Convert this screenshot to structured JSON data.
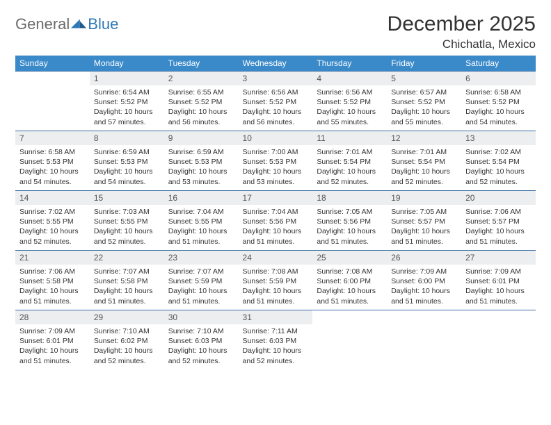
{
  "brand": {
    "part1": "General",
    "part2": "Blue"
  },
  "title": "December 2025",
  "location": "Chichatla, Mexico",
  "colors": {
    "header_bg": "#3a89c9",
    "header_text": "#ffffff",
    "daynum_bg": "#eceeef",
    "cell_border": "#3a6fa5",
    "brand_accent": "#2f78b6",
    "brand_gray": "#6b6b6b",
    "text": "#333333",
    "page_bg": "#ffffff"
  },
  "weekdays": [
    "Sunday",
    "Monday",
    "Tuesday",
    "Wednesday",
    "Thursday",
    "Friday",
    "Saturday"
  ],
  "weeks": [
    [
      {
        "n": "",
        "sr": "",
        "ss": "",
        "dl": ""
      },
      {
        "n": "1",
        "sr": "Sunrise: 6:54 AM",
        "ss": "Sunset: 5:52 PM",
        "dl": "Daylight: 10 hours and 57 minutes."
      },
      {
        "n": "2",
        "sr": "Sunrise: 6:55 AM",
        "ss": "Sunset: 5:52 PM",
        "dl": "Daylight: 10 hours and 56 minutes."
      },
      {
        "n": "3",
        "sr": "Sunrise: 6:56 AM",
        "ss": "Sunset: 5:52 PM",
        "dl": "Daylight: 10 hours and 56 minutes."
      },
      {
        "n": "4",
        "sr": "Sunrise: 6:56 AM",
        "ss": "Sunset: 5:52 PM",
        "dl": "Daylight: 10 hours and 55 minutes."
      },
      {
        "n": "5",
        "sr": "Sunrise: 6:57 AM",
        "ss": "Sunset: 5:52 PM",
        "dl": "Daylight: 10 hours and 55 minutes."
      },
      {
        "n": "6",
        "sr": "Sunrise: 6:58 AM",
        "ss": "Sunset: 5:52 PM",
        "dl": "Daylight: 10 hours and 54 minutes."
      }
    ],
    [
      {
        "n": "7",
        "sr": "Sunrise: 6:58 AM",
        "ss": "Sunset: 5:53 PM",
        "dl": "Daylight: 10 hours and 54 minutes."
      },
      {
        "n": "8",
        "sr": "Sunrise: 6:59 AM",
        "ss": "Sunset: 5:53 PM",
        "dl": "Daylight: 10 hours and 54 minutes."
      },
      {
        "n": "9",
        "sr": "Sunrise: 6:59 AM",
        "ss": "Sunset: 5:53 PM",
        "dl": "Daylight: 10 hours and 53 minutes."
      },
      {
        "n": "10",
        "sr": "Sunrise: 7:00 AM",
        "ss": "Sunset: 5:53 PM",
        "dl": "Daylight: 10 hours and 53 minutes."
      },
      {
        "n": "11",
        "sr": "Sunrise: 7:01 AM",
        "ss": "Sunset: 5:54 PM",
        "dl": "Daylight: 10 hours and 52 minutes."
      },
      {
        "n": "12",
        "sr": "Sunrise: 7:01 AM",
        "ss": "Sunset: 5:54 PM",
        "dl": "Daylight: 10 hours and 52 minutes."
      },
      {
        "n": "13",
        "sr": "Sunrise: 7:02 AM",
        "ss": "Sunset: 5:54 PM",
        "dl": "Daylight: 10 hours and 52 minutes."
      }
    ],
    [
      {
        "n": "14",
        "sr": "Sunrise: 7:02 AM",
        "ss": "Sunset: 5:55 PM",
        "dl": "Daylight: 10 hours and 52 minutes."
      },
      {
        "n": "15",
        "sr": "Sunrise: 7:03 AM",
        "ss": "Sunset: 5:55 PM",
        "dl": "Daylight: 10 hours and 52 minutes."
      },
      {
        "n": "16",
        "sr": "Sunrise: 7:04 AM",
        "ss": "Sunset: 5:55 PM",
        "dl": "Daylight: 10 hours and 51 minutes."
      },
      {
        "n": "17",
        "sr": "Sunrise: 7:04 AM",
        "ss": "Sunset: 5:56 PM",
        "dl": "Daylight: 10 hours and 51 minutes."
      },
      {
        "n": "18",
        "sr": "Sunrise: 7:05 AM",
        "ss": "Sunset: 5:56 PM",
        "dl": "Daylight: 10 hours and 51 minutes."
      },
      {
        "n": "19",
        "sr": "Sunrise: 7:05 AM",
        "ss": "Sunset: 5:57 PM",
        "dl": "Daylight: 10 hours and 51 minutes."
      },
      {
        "n": "20",
        "sr": "Sunrise: 7:06 AM",
        "ss": "Sunset: 5:57 PM",
        "dl": "Daylight: 10 hours and 51 minutes."
      }
    ],
    [
      {
        "n": "21",
        "sr": "Sunrise: 7:06 AM",
        "ss": "Sunset: 5:58 PM",
        "dl": "Daylight: 10 hours and 51 minutes."
      },
      {
        "n": "22",
        "sr": "Sunrise: 7:07 AM",
        "ss": "Sunset: 5:58 PM",
        "dl": "Daylight: 10 hours and 51 minutes."
      },
      {
        "n": "23",
        "sr": "Sunrise: 7:07 AM",
        "ss": "Sunset: 5:59 PM",
        "dl": "Daylight: 10 hours and 51 minutes."
      },
      {
        "n": "24",
        "sr": "Sunrise: 7:08 AM",
        "ss": "Sunset: 5:59 PM",
        "dl": "Daylight: 10 hours and 51 minutes."
      },
      {
        "n": "25",
        "sr": "Sunrise: 7:08 AM",
        "ss": "Sunset: 6:00 PM",
        "dl": "Daylight: 10 hours and 51 minutes."
      },
      {
        "n": "26",
        "sr": "Sunrise: 7:09 AM",
        "ss": "Sunset: 6:00 PM",
        "dl": "Daylight: 10 hours and 51 minutes."
      },
      {
        "n": "27",
        "sr": "Sunrise: 7:09 AM",
        "ss": "Sunset: 6:01 PM",
        "dl": "Daylight: 10 hours and 51 minutes."
      }
    ],
    [
      {
        "n": "28",
        "sr": "Sunrise: 7:09 AM",
        "ss": "Sunset: 6:01 PM",
        "dl": "Daylight: 10 hours and 51 minutes."
      },
      {
        "n": "29",
        "sr": "Sunrise: 7:10 AM",
        "ss": "Sunset: 6:02 PM",
        "dl": "Daylight: 10 hours and 52 minutes."
      },
      {
        "n": "30",
        "sr": "Sunrise: 7:10 AM",
        "ss": "Sunset: 6:03 PM",
        "dl": "Daylight: 10 hours and 52 minutes."
      },
      {
        "n": "31",
        "sr": "Sunrise: 7:11 AM",
        "ss": "Sunset: 6:03 PM",
        "dl": "Daylight: 10 hours and 52 minutes."
      },
      {
        "n": "",
        "sr": "",
        "ss": "",
        "dl": ""
      },
      {
        "n": "",
        "sr": "",
        "ss": "",
        "dl": ""
      },
      {
        "n": "",
        "sr": "",
        "ss": "",
        "dl": ""
      }
    ]
  ]
}
